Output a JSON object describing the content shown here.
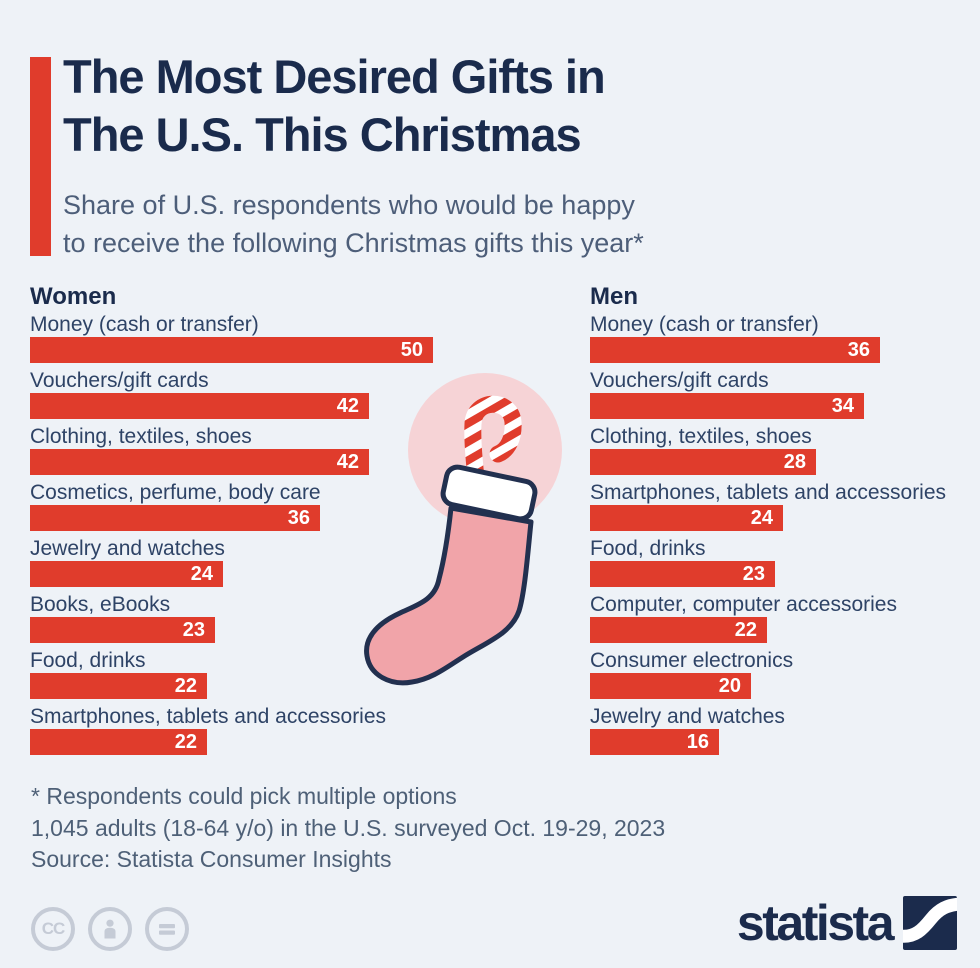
{
  "header": {
    "title": "The Most Desired Gifts in\nThe U.S. This Christmas",
    "subtitle": "Share of U.S. respondents who would be happy\nto receive the following Christmas gifts this year*"
  },
  "chart_data": {
    "type": "bar",
    "orientation": "horizontal",
    "value_unit": "percent of respondents",
    "value_range": [
      0,
      50
    ],
    "data_labels": "inside-end",
    "groups": [
      {
        "label": "Women",
        "categories": [
          "Money (cash or transfer)",
          "Vouchers/gift cards",
          "Clothing, textiles, shoes",
          "Cosmetics, perfume, body care",
          "Jewelry and watches",
          "Books, eBooks",
          "Food, drinks",
          "Smartphones, tablets and accessories"
        ],
        "values": [
          50,
          42,
          42,
          36,
          24,
          23,
          22,
          22
        ]
      },
      {
        "label": "Men",
        "categories": [
          "Money (cash or transfer)",
          "Vouchers/gift cards",
          "Clothing, textiles, shoes",
          "Smartphones, tablets and accessories",
          "Food, drinks",
          "Computer, computer accessories",
          "Consumer electronics",
          "Jewelry and watches"
        ],
        "values": [
          36,
          34,
          28,
          24,
          23,
          22,
          20,
          16
        ]
      }
    ]
  },
  "illustration": {
    "name": "christmas-stocking-with-candy-cane"
  },
  "footnotes": {
    "note1": "* Respondents could pick multiple options",
    "note2": "1,045 adults (18-64 y/o) in the U.S. surveyed Oct. 19-29, 2023",
    "source": "Source: Statista Consumer Insights"
  },
  "branding": {
    "logo_text": "statista",
    "cc_glyph": "CC",
    "license_icons": [
      "creative-commons-icon",
      "attribution-person-icon",
      "no-derivatives-equals-icon"
    ]
  },
  "colors": {
    "background": "#eef2f7",
    "bar": "#e03c2c",
    "title": "#1a2b4c",
    "label": "#2e4366",
    "subtitle": "#4d5e79",
    "footnote": "#4e6077",
    "badge_gray": "#c5cbd6",
    "logo_navy": "#1b2b4c",
    "stocking_pink": "#f1a4a9",
    "circle_pink": "#f6d3d6",
    "cuff_white": "#ffffff",
    "outline_navy": "#22304f"
  }
}
